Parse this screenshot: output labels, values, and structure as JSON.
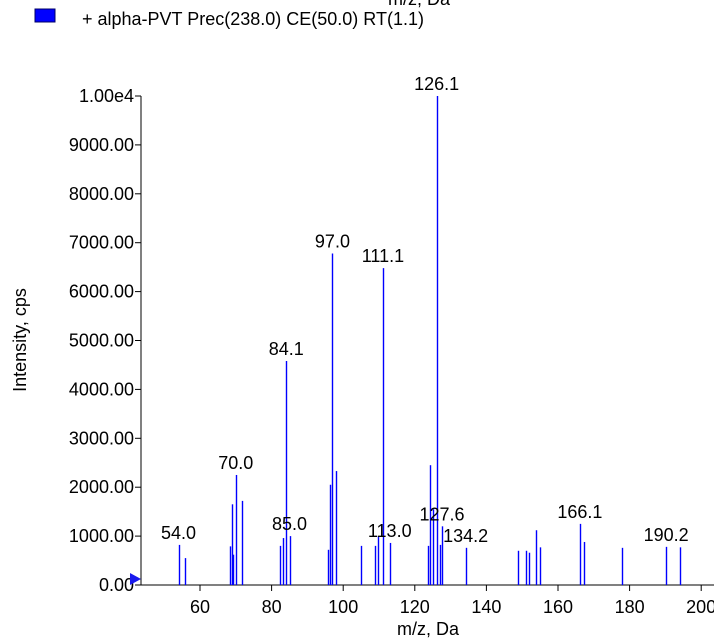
{
  "top_fragment": "m/z, Da",
  "legend": {
    "color": "#0000ff",
    "label": "+ alpha-PVT Prec(238.0) CE(50.0) RT(1.1)"
  },
  "chart_data": {
    "type": "bar",
    "title": "",
    "xlabel": "m/z, Da",
    "ylabel": "Intensity, cps",
    "xlim": [
      42,
      200
    ],
    "ylim": [
      0,
      10000
    ],
    "grid": false,
    "bar_color": "#0000ff",
    "x_ticks": [
      60,
      80,
      100,
      120,
      140,
      160,
      180,
      200
    ],
    "x_tick_labels": [
      "60",
      "80",
      "100",
      "120",
      "140",
      "160",
      "180",
      "200"
    ],
    "y_ticks": [
      0,
      1000,
      2000,
      3000,
      4000,
      5000,
      6000,
      7000,
      8000,
      9000,
      10000
    ],
    "y_tick_labels": [
      "0.00",
      "1000.00",
      "2000.00",
      "3000.00",
      "4000.00",
      "5000.00",
      "6000.00",
      "7000.00",
      "8000.00",
      "9000.00",
      "1.00e4"
    ],
    "peaks": [
      {
        "x": 54.0,
        "y": 820
      },
      {
        "x": 55.7,
        "y": 550
      },
      {
        "x": 68.5,
        "y": 790
      },
      {
        "x": 69.0,
        "y": 1650
      },
      {
        "x": 69.3,
        "y": 620
      },
      {
        "x": 70.0,
        "y": 2250
      },
      {
        "x": 71.8,
        "y": 1720
      },
      {
        "x": 82.3,
        "y": 800
      },
      {
        "x": 83.2,
        "y": 960
      },
      {
        "x": 84.1,
        "y": 4580
      },
      {
        "x": 85.0,
        "y": 1000
      },
      {
        "x": 95.8,
        "y": 720
      },
      {
        "x": 96.3,
        "y": 2050
      },
      {
        "x": 97.0,
        "y": 6780
      },
      {
        "x": 98.0,
        "y": 2330
      },
      {
        "x": 105.0,
        "y": 800
      },
      {
        "x": 109.0,
        "y": 800
      },
      {
        "x": 109.6,
        "y": 1000
      },
      {
        "x": 111.1,
        "y": 6480
      },
      {
        "x": 113.0,
        "y": 860
      },
      {
        "x": 123.8,
        "y": 800
      },
      {
        "x": 124.3,
        "y": 2450
      },
      {
        "x": 125.2,
        "y": 1550
      },
      {
        "x": 126.1,
        "y": 10000
      },
      {
        "x": 127.0,
        "y": 820
      },
      {
        "x": 127.6,
        "y": 1200
      },
      {
        "x": 134.2,
        "y": 760
      },
      {
        "x": 148.8,
        "y": 700
      },
      {
        "x": 151.0,
        "y": 700
      },
      {
        "x": 151.8,
        "y": 660
      },
      {
        "x": 153.8,
        "y": 1120
      },
      {
        "x": 155.0,
        "y": 770
      },
      {
        "x": 166.1,
        "y": 1250
      },
      {
        "x": 167.2,
        "y": 880
      },
      {
        "x": 178.0,
        "y": 760
      },
      {
        "x": 190.2,
        "y": 780
      },
      {
        "x": 194.2,
        "y": 770
      }
    ],
    "peak_labels": [
      {
        "x": 54.0,
        "y": 820,
        "text": "54.0"
      },
      {
        "x": 70.0,
        "y": 2250,
        "text": "70.0"
      },
      {
        "x": 84.1,
        "y": 4580,
        "text": "84.1"
      },
      {
        "x": 85.0,
        "y": 1000,
        "text": "85.0"
      },
      {
        "x": 97.0,
        "y": 6780,
        "text": "97.0"
      },
      {
        "x": 111.1,
        "y": 6480,
        "text": "111.1"
      },
      {
        "x": 113.0,
        "y": 860,
        "text": "113.0"
      },
      {
        "x": 126.1,
        "y": 10000,
        "text": "126.1"
      },
      {
        "x": 127.6,
        "y": 1200,
        "text": "127.6"
      },
      {
        "x": 134.2,
        "y": 760,
        "text": "134.2"
      },
      {
        "x": 166.1,
        "y": 1250,
        "text": "166.1"
      },
      {
        "x": 190.2,
        "y": 780,
        "text": "190.2"
      }
    ]
  }
}
